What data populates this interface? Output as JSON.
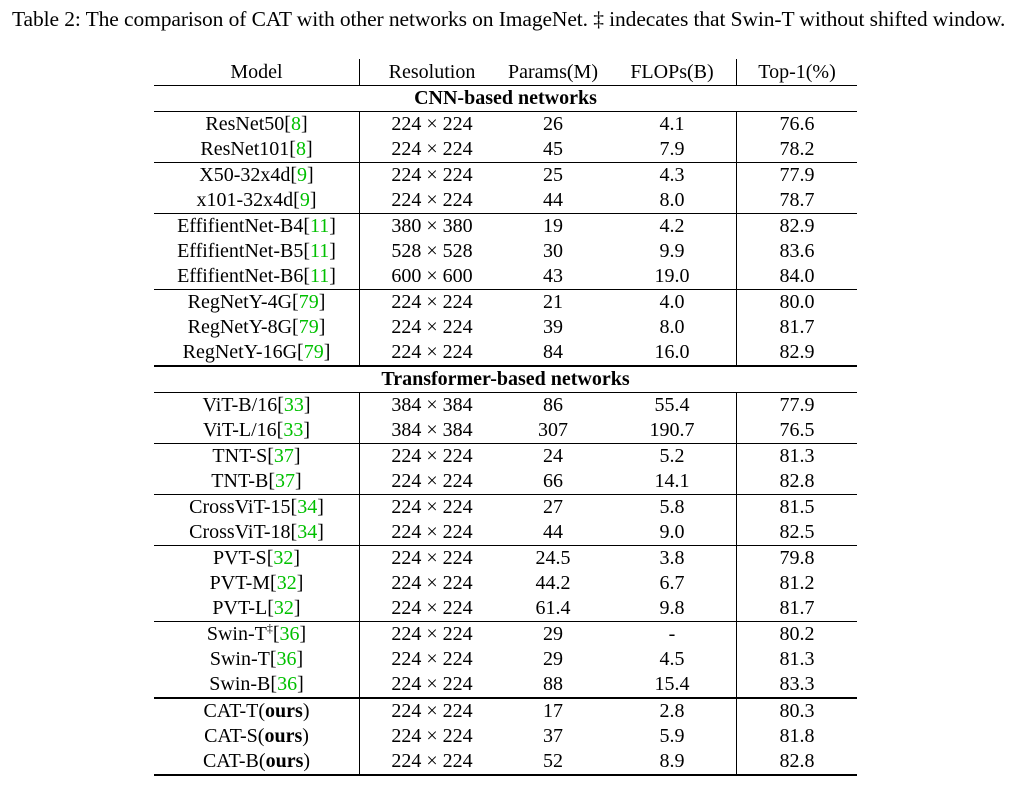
{
  "caption": "Table 2: The comparison of CAT with other networks on ImageNet. ‡ indecates that Swin-T without shifted window.",
  "table": {
    "headers": [
      "Model",
      "Resolution",
      "Params(M)",
      "FLOPs(B)",
      "Top-1(%)"
    ],
    "sections": [
      {
        "title": "CNN-based networks",
        "groups": [
          [
            {
              "name": "ResNet50",
              "ref": "8",
              "res": "224 × 224",
              "params": "26",
              "flops": "4.1",
              "top1": "76.6"
            },
            {
              "name": "ResNet101",
              "ref": "8",
              "res": "224 × 224",
              "params": "45",
              "flops": "7.9",
              "top1": "78.2"
            }
          ],
          [
            {
              "name": "X50-32x4d",
              "ref": "9",
              "res": "224 × 224",
              "params": "25",
              "flops": "4.3",
              "top1": "77.9"
            },
            {
              "name": "x101-32x4d",
              "ref": "9",
              "res": "224 × 224",
              "params": "44",
              "flops": "8.0",
              "top1": "78.7"
            }
          ],
          [
            {
              "name": "EffifientNet-B4",
              "ref": "11",
              "res": "380 × 380",
              "params": "19",
              "flops": "4.2",
              "top1": "82.9"
            },
            {
              "name": "EffifientNet-B5",
              "ref": "11",
              "res": "528 × 528",
              "params": "30",
              "flops": "9.9",
              "top1": "83.6"
            },
            {
              "name": "EffifientNet-B6",
              "ref": "11",
              "res": "600 × 600",
              "params": "43",
              "flops": "19.0",
              "top1": "84.0"
            }
          ],
          [
            {
              "name": "RegNetY-4G",
              "ref": "79",
              "res": "224 × 224",
              "params": "21",
              "flops": "4.0",
              "top1": "80.0"
            },
            {
              "name": "RegNetY-8G",
              "ref": "79",
              "res": "224 × 224",
              "params": "39",
              "flops": "8.0",
              "top1": "81.7"
            },
            {
              "name": "RegNetY-16G",
              "ref": "79",
              "res": "224 × 224",
              "params": "84",
              "flops": "16.0",
              "top1": "82.9"
            }
          ]
        ]
      },
      {
        "title": "Transformer-based networks",
        "groups": [
          [
            {
              "name": "ViT-B/16",
              "ref": "33",
              "res": "384 × 384",
              "params": "86",
              "flops": "55.4",
              "top1": "77.9"
            },
            {
              "name": "ViT-L/16",
              "ref": "33",
              "res": "384 × 384",
              "params": "307",
              "flops": "190.7",
              "top1": "76.5"
            }
          ],
          [
            {
              "name": "TNT-S",
              "ref": "37",
              "res": "224 × 224",
              "params": "24",
              "flops": "5.2",
              "top1": "81.3"
            },
            {
              "name": "TNT-B",
              "ref": "37",
              "res": "224 × 224",
              "params": "66",
              "flops": "14.1",
              "top1": "82.8"
            }
          ],
          [
            {
              "name": "CrossViT-15",
              "ref": "34",
              "res": "224 × 224",
              "params": "27",
              "flops": "5.8",
              "top1": "81.5"
            },
            {
              "name": "CrossViT-18",
              "ref": "34",
              "res": "224 × 224",
              "params": "44",
              "flops": "9.0",
              "top1": "82.5"
            }
          ],
          [
            {
              "name": "PVT-S",
              "ref": "32",
              "res": "224 × 224",
              "params": "24.5",
              "flops": "3.8",
              "top1": "79.8"
            },
            {
              "name": "PVT-M",
              "ref": "32",
              "res": "224 × 224",
              "params": "44.2",
              "flops": "6.7",
              "top1": "81.2"
            },
            {
              "name": "PVT-L",
              "ref": "32",
              "res": "224 × 224",
              "params": "61.4",
              "flops": "9.8",
              "top1": "81.7"
            }
          ],
          [
            {
              "name": "Swin-T",
              "sup": "‡",
              "ref": "36",
              "res": "224 × 224",
              "params": "29",
              "flops": "-",
              "top1": "80.2"
            },
            {
              "name": "Swin-T",
              "ref": "36",
              "res": "224 × 224",
              "params": "29",
              "flops": "4.5",
              "top1": "81.3"
            },
            {
              "name": "Swin-B",
              "ref": "36",
              "res": "224 × 224",
              "params": "88",
              "flops": "15.4",
              "top1": "83.3"
            }
          ]
        ]
      }
    ],
    "ours": [
      {
        "name": "CAT-T",
        "suffix": "ours",
        "res": "224 × 224",
        "params": "17",
        "flops": "2.8",
        "top1": "80.3"
      },
      {
        "name": "CAT-S",
        "suffix": "ours",
        "res": "224 × 224",
        "params": "37",
        "flops": "5.9",
        "top1": "81.8"
      },
      {
        "name": "CAT-B",
        "suffix": "ours",
        "res": "224 × 224",
        "params": "52",
        "flops": "8.9",
        "top1": "82.8"
      }
    ]
  },
  "colors": {
    "reference": "#00c000",
    "text": "#000000"
  }
}
